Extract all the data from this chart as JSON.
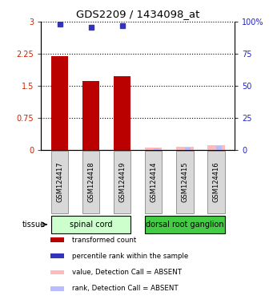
{
  "title": "GDS2209 / 1434098_at",
  "samples": [
    "GSM124417",
    "GSM124418",
    "GSM124419",
    "GSM124414",
    "GSM124415",
    "GSM124416"
  ],
  "bar_values": [
    2.2,
    1.62,
    1.72,
    0.05,
    0.07,
    0.12
  ],
  "bar_color_present": "#bb0000",
  "bar_color_absent": "#ffbbbb",
  "dot_values": [
    2.95,
    2.86,
    2.91,
    null,
    null,
    null
  ],
  "dot_color_present": "#3333bb",
  "rank_absent_values": [
    0.04,
    0.06,
    0.09
  ],
  "rank_absent_color": "#bbbbff",
  "ylim_left": [
    0,
    3
  ],
  "ylim_right": [
    0,
    100
  ],
  "yticks_left": [
    0,
    0.75,
    1.5,
    2.25,
    3
  ],
  "yticks_right": [
    0,
    25,
    50,
    75,
    100
  ],
  "left_tick_color": "#cc2200",
  "right_tick_color": "#2222cc",
  "absent_bar_indices": [
    3,
    4,
    5
  ],
  "group1_name": "spinal cord",
  "group2_name": "dorsal root ganglion",
  "group1_color": "#ccffcc",
  "group2_color": "#44cc44",
  "tissue_label": "tissue",
  "legend_items": [
    {
      "label": "transformed count",
      "color": "#bb0000"
    },
    {
      "label": "percentile rank within the sample",
      "color": "#3333bb"
    },
    {
      "label": "value, Detection Call = ABSENT",
      "color": "#ffbbbb"
    },
    {
      "label": "rank, Detection Call = ABSENT",
      "color": "#bbbbff"
    }
  ]
}
